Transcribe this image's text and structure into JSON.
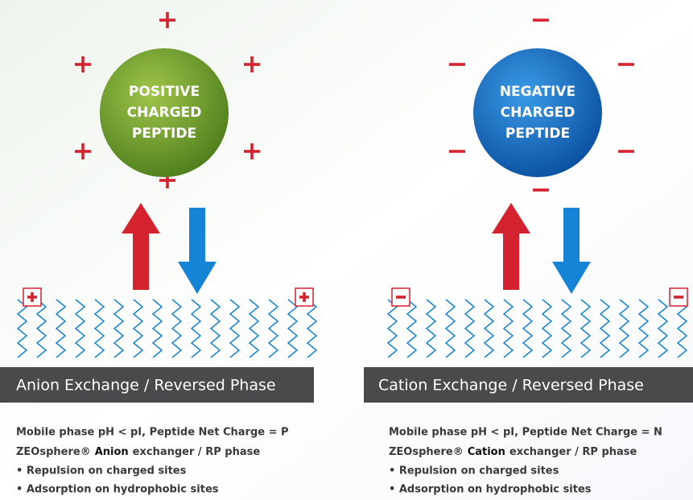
{
  "panels": [
    {
      "peptide_label": [
        "POSITIVE",
        "CHARGED",
        "PEPTIDE"
      ],
      "title": "Anion Exchange / Reversed Phase",
      "description": {
        "condition": "Mobile phase pH < pI, Peptide Net Charge = P",
        "material": {
          "prefix": "ZEOsphere®",
          "highlight": "Anion",
          "suffix": "exchanger / RP phase"
        },
        "bullets": [
          "• Repulsion on charged sites",
          "• Adsorption on hydrophobic sites"
        ]
      }
    },
    {
      "peptide_label": [
        "NEGATIVE",
        "CHARGED",
        "PEPTIDE"
      ],
      "title": "Cation Exchange / Reversed Phase",
      "description": {
        "condition": "Mobile phase pH < pI, Peptide Net Charge = N",
        "material": {
          "prefix": "ZEOsphere®",
          "highlight": "Cation",
          "suffix": "exchanger / RP phase"
        },
        "bullets": [
          "• Repulsion on charged sites",
          "• Adsorption on hydrophobic sites"
        ]
      }
    }
  ]
}
